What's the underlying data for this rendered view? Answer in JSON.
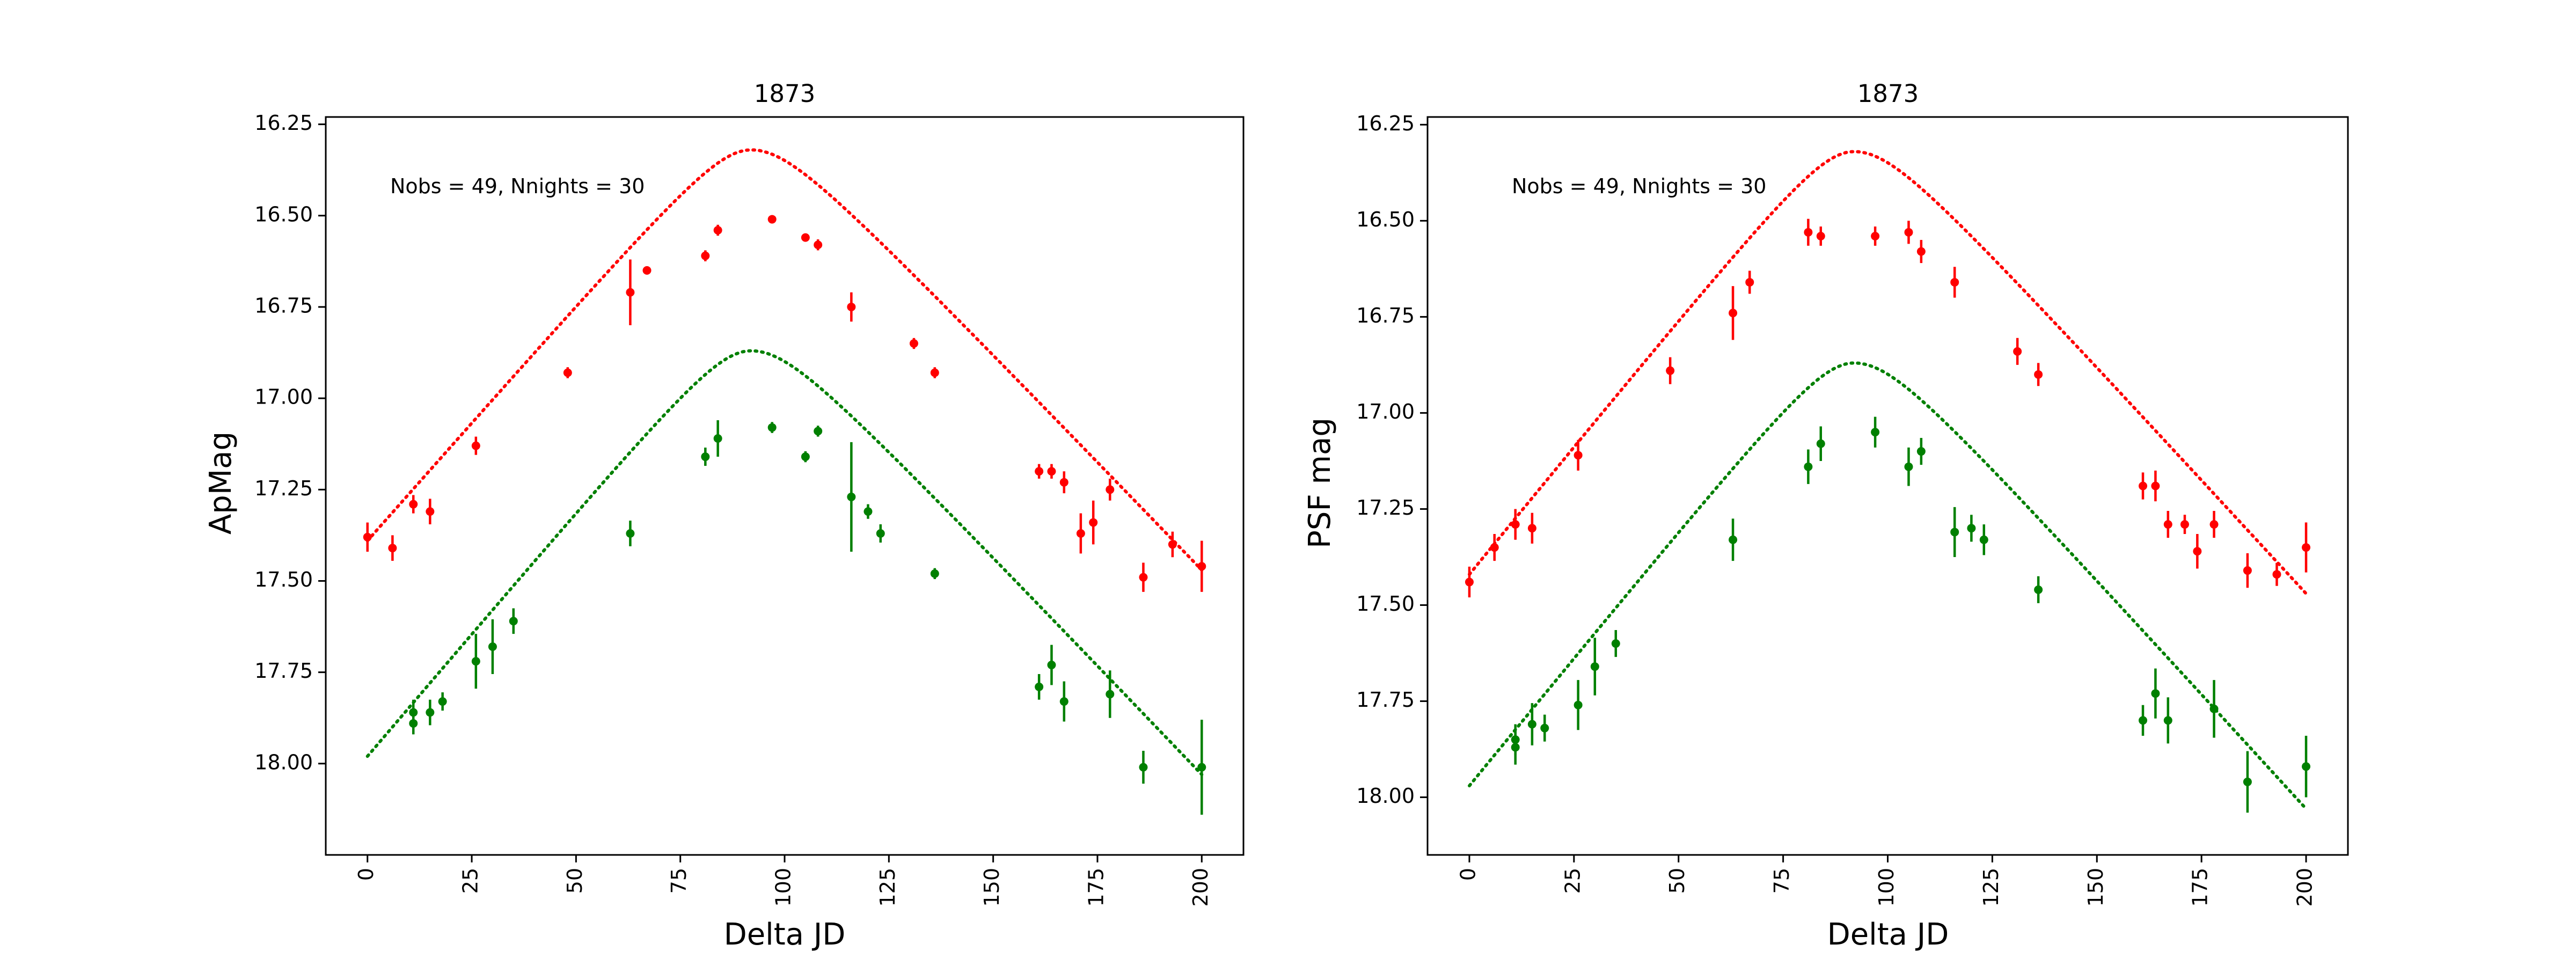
{
  "chart_data": [
    {
      "type": "scatter",
      "title": "1873",
      "xlabel": "Delta JD",
      "ylabel": "ApMag",
      "xlim": [
        -10,
        210
      ],
      "ylim": [
        18.25,
        16.23
      ],
      "y_inverted": true,
      "grid": false,
      "annotation": "Nobs = 49, Nnights = 30",
      "xticks": [
        "0",
        "25",
        "50",
        "75",
        "100",
        "125",
        "150",
        "175",
        "200"
      ],
      "yticks": [
        "16.25",
        "16.50",
        "16.75",
        "17.00",
        "17.25",
        "17.50",
        "17.75",
        "18.00"
      ],
      "colors": {
        "red": "#ff0000",
        "green": "#008000"
      },
      "series": [
        {
          "color": "red",
          "points": [
            {
              "x": 0,
              "y": 17.38,
              "err": 0.04
            },
            {
              "x": 6,
              "y": 17.41,
              "err": 0.035
            },
            {
              "x": 11,
              "y": 17.29,
              "err": 0.025
            },
            {
              "x": 15,
              "y": 17.31,
              "err": 0.035
            },
            {
              "x": 26,
              "y": 17.13,
              "err": 0.025
            },
            {
              "x": 48,
              "y": 16.93,
              "err": 0.015
            },
            {
              "x": 63,
              "y": 16.71,
              "err": 0.09
            },
            {
              "x": 67,
              "y": 16.65,
              "err": 0.01
            },
            {
              "x": 81,
              "y": 16.61,
              "err": 0.015
            },
            {
              "x": 84,
              "y": 16.54,
              "err": 0.015
            },
            {
              "x": 97,
              "y": 16.51,
              "err": 0.01
            },
            {
              "x": 105,
              "y": 16.56,
              "err": 0.01
            },
            {
              "x": 108,
              "y": 16.58,
              "err": 0.015
            },
            {
              "x": 116,
              "y": 16.75,
              "err": 0.04
            },
            {
              "x": 131,
              "y": 16.85,
              "err": 0.015
            },
            {
              "x": 136,
              "y": 16.93,
              "err": 0.015
            },
            {
              "x": 161,
              "y": 17.2,
              "err": 0.02
            },
            {
              "x": 164,
              "y": 17.2,
              "err": 0.02
            },
            {
              "x": 167,
              "y": 17.23,
              "err": 0.03
            },
            {
              "x": 171,
              "y": 17.37,
              "err": 0.055
            },
            {
              "x": 174,
              "y": 17.34,
              "err": 0.06
            },
            {
              "x": 178,
              "y": 17.25,
              "err": 0.03
            },
            {
              "x": 186,
              "y": 17.49,
              "err": 0.04
            },
            {
              "x": 193,
              "y": 17.4,
              "err": 0.035
            },
            {
              "x": 200,
              "y": 17.46,
              "err": 0.07
            }
          ],
          "model": {
            "peak_x": 92,
            "peak_y": 16.32,
            "left_y": 17.39,
            "right_y": 17.47
          }
        },
        {
          "color": "green",
          "points": [
            {
              "x": 11,
              "y": 17.89,
              "err": 0.03
            },
            {
              "x": 11,
              "y": 17.86,
              "err": 0.035
            },
            {
              "x": 15,
              "y": 17.86,
              "err": 0.035
            },
            {
              "x": 18,
              "y": 17.83,
              "err": 0.025
            },
            {
              "x": 26,
              "y": 17.72,
              "err": 0.075
            },
            {
              "x": 30,
              "y": 17.68,
              "err": 0.075
            },
            {
              "x": 35,
              "y": 17.61,
              "err": 0.035
            },
            {
              "x": 63,
              "y": 17.37,
              "err": 0.035
            },
            {
              "x": 81,
              "y": 17.16,
              "err": 0.025
            },
            {
              "x": 84,
              "y": 17.11,
              "err": 0.05
            },
            {
              "x": 97,
              "y": 17.08,
              "err": 0.015
            },
            {
              "x": 105,
              "y": 17.16,
              "err": 0.015
            },
            {
              "x": 108,
              "y": 17.09,
              "err": 0.015
            },
            {
              "x": 116,
              "y": 17.27,
              "err": 0.15
            },
            {
              "x": 120,
              "y": 17.31,
              "err": 0.02
            },
            {
              "x": 123,
              "y": 17.37,
              "err": 0.025
            },
            {
              "x": 136,
              "y": 17.48,
              "err": 0.015
            },
            {
              "x": 161,
              "y": 17.79,
              "err": 0.035
            },
            {
              "x": 164,
              "y": 17.73,
              "err": 0.055
            },
            {
              "x": 167,
              "y": 17.83,
              "err": 0.055
            },
            {
              "x": 178,
              "y": 17.81,
              "err": 0.065
            },
            {
              "x": 186,
              "y": 18.01,
              "err": 0.045
            },
            {
              "x": 200,
              "y": 18.01,
              "err": 0.13
            }
          ],
          "model": {
            "peak_x": 92,
            "peak_y": 16.87,
            "left_y": 17.98,
            "right_y": 18.03
          }
        }
      ]
    },
    {
      "type": "scatter",
      "title": "1873",
      "xlabel": "Delta JD",
      "ylabel": "PSF mag",
      "xlim": [
        -10,
        210
      ],
      "ylim": [
        18.15,
        16.23
      ],
      "y_inverted": true,
      "grid": false,
      "annotation": "Nobs = 49, Nnights = 30",
      "xticks": [
        "0",
        "25",
        "50",
        "75",
        "100",
        "125",
        "150",
        "175",
        "200"
      ],
      "yticks": [
        "16.25",
        "16.50",
        "16.75",
        "17.00",
        "17.25",
        "17.50",
        "17.75",
        "18.00"
      ],
      "colors": {
        "red": "#ff0000",
        "green": "#008000"
      },
      "series": [
        {
          "color": "red",
          "points": [
            {
              "x": 0,
              "y": 17.44,
              "err": 0.04
            },
            {
              "x": 6,
              "y": 17.35,
              "err": 0.035
            },
            {
              "x": 11,
              "y": 17.29,
              "err": 0.04
            },
            {
              "x": 15,
              "y": 17.3,
              "err": 0.04
            },
            {
              "x": 26,
              "y": 17.11,
              "err": 0.04
            },
            {
              "x": 48,
              "y": 16.89,
              "err": 0.035
            },
            {
              "x": 63,
              "y": 16.74,
              "err": 0.07
            },
            {
              "x": 67,
              "y": 16.66,
              "err": 0.03
            },
            {
              "x": 81,
              "y": 16.53,
              "err": 0.035
            },
            {
              "x": 84,
              "y": 16.54,
              "err": 0.025
            },
            {
              "x": 97,
              "y": 16.54,
              "err": 0.025
            },
            {
              "x": 105,
              "y": 16.53,
              "err": 0.03
            },
            {
              "x": 108,
              "y": 16.58,
              "err": 0.03
            },
            {
              "x": 116,
              "y": 16.66,
              "err": 0.04
            },
            {
              "x": 131,
              "y": 16.84,
              "err": 0.035
            },
            {
              "x": 136,
              "y": 16.9,
              "err": 0.03
            },
            {
              "x": 161,
              "y": 17.19,
              "err": 0.035
            },
            {
              "x": 164,
              "y": 17.19,
              "err": 0.04
            },
            {
              "x": 167,
              "y": 17.29,
              "err": 0.035
            },
            {
              "x": 171,
              "y": 17.29,
              "err": 0.025
            },
            {
              "x": 174,
              "y": 17.36,
              "err": 0.045
            },
            {
              "x": 178,
              "y": 17.29,
              "err": 0.035
            },
            {
              "x": 186,
              "y": 17.41,
              "err": 0.045
            },
            {
              "x": 193,
              "y": 17.42,
              "err": 0.03
            },
            {
              "x": 200,
              "y": 17.35,
              "err": 0.065
            }
          ],
          "model": {
            "peak_x": 92,
            "peak_y": 16.32,
            "left_y": 17.42,
            "right_y": 17.47
          }
        },
        {
          "color": "green",
          "points": [
            {
              "x": 11,
              "y": 17.87,
              "err": 0.045
            },
            {
              "x": 11,
              "y": 17.85,
              "err": 0.04
            },
            {
              "x": 15,
              "y": 17.81,
              "err": 0.055
            },
            {
              "x": 18,
              "y": 17.82,
              "err": 0.035
            },
            {
              "x": 26,
              "y": 17.76,
              "err": 0.065
            },
            {
              "x": 30,
              "y": 17.66,
              "err": 0.075
            },
            {
              "x": 35,
              "y": 17.6,
              "err": 0.035
            },
            {
              "x": 63,
              "y": 17.33,
              "err": 0.055
            },
            {
              "x": 81,
              "y": 17.14,
              "err": 0.045
            },
            {
              "x": 84,
              "y": 17.08,
              "err": 0.045
            },
            {
              "x": 97,
              "y": 17.05,
              "err": 0.04
            },
            {
              "x": 105,
              "y": 17.14,
              "err": 0.05
            },
            {
              "x": 108,
              "y": 17.1,
              "err": 0.035
            },
            {
              "x": 116,
              "y": 17.31,
              "err": 0.065
            },
            {
              "x": 120,
              "y": 17.3,
              "err": 0.035
            },
            {
              "x": 123,
              "y": 17.33,
              "err": 0.04
            },
            {
              "x": 136,
              "y": 17.46,
              "err": 0.035
            },
            {
              "x": 161,
              "y": 17.8,
              "err": 0.04
            },
            {
              "x": 164,
              "y": 17.73,
              "err": 0.065
            },
            {
              "x": 167,
              "y": 17.8,
              "err": 0.06
            },
            {
              "x": 178,
              "y": 17.77,
              "err": 0.075
            },
            {
              "x": 186,
              "y": 17.96,
              "err": 0.08
            },
            {
              "x": 200,
              "y": 17.92,
              "err": 0.08
            }
          ],
          "model": {
            "peak_x": 92,
            "peak_y": 16.87,
            "left_y": 17.97,
            "right_y": 18.03
          }
        }
      ]
    }
  ]
}
